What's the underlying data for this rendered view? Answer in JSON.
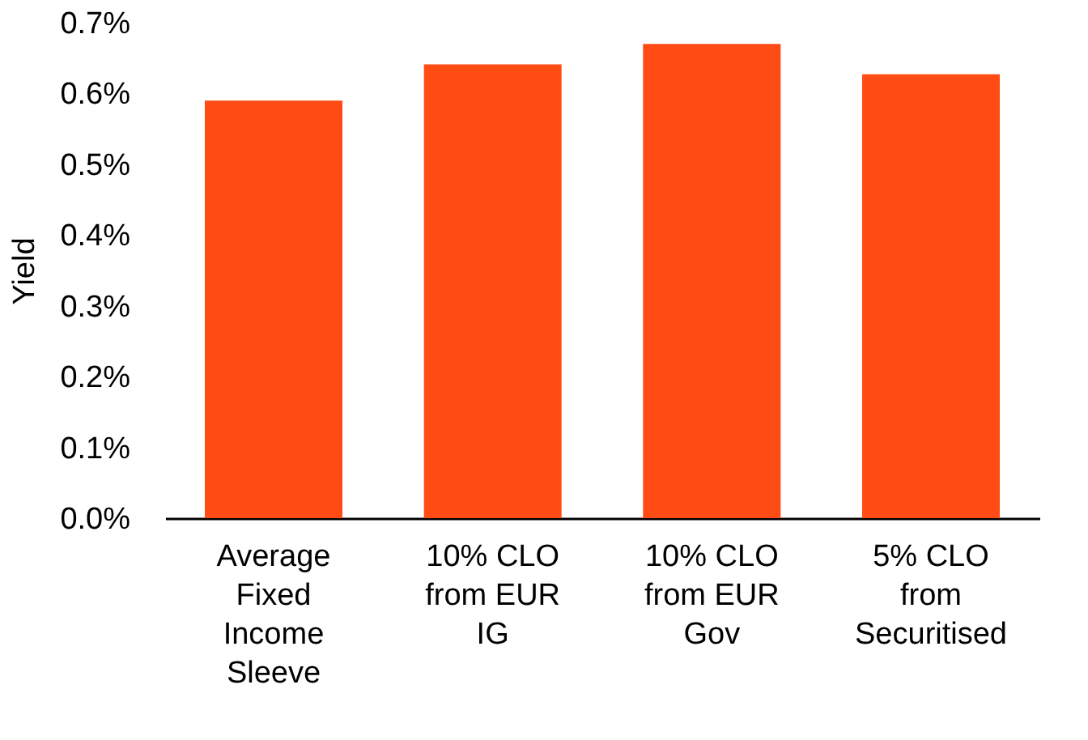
{
  "chart_data": {
    "type": "bar",
    "ylabel": "Yield",
    "categories": [
      "Average Fixed Income Sleeve",
      "10% CLO from EUR IG",
      "10% CLO from EUR Gov",
      "5% CLO from Securitised"
    ],
    "values": [
      0.59,
      0.641,
      0.67,
      0.627
    ],
    "color": "#ff4b14",
    "ylim": [
      0,
      0.7
    ],
    "yticks": [
      {
        "value": 0,
        "label": "0.0%"
      },
      {
        "value": 0.1,
        "label": "0.1%"
      },
      {
        "value": 0.2,
        "label": "0.2%"
      },
      {
        "value": 0.3,
        "label": "0.3%"
      },
      {
        "value": 0.4,
        "label": "0.4%"
      },
      {
        "value": 0.5,
        "label": "0.5%"
      },
      {
        "value": 0.6,
        "label": "0.6%"
      },
      {
        "value": 0.7,
        "label": "0.7%"
      }
    ],
    "grid": false
  }
}
